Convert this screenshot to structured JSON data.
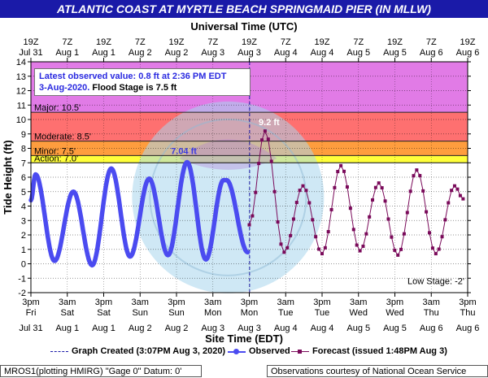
{
  "title": "ATLANTIC COAST AT MYRTLE BEACH SPRINGMAID PIER (IN MLLW)",
  "top_axis_title": "Universal Time (UTC)",
  "y_axis_title": "Tide Height (ft)",
  "x_axis_title": "Site Time (EDT)",
  "annotation": {
    "line1": "Latest observed value: 0.8 ft at 2:36 PM EDT",
    "line2_date": "3-Aug-2020.",
    "line2_flood": "Flood Stage is 7.5 ft"
  },
  "legend": {
    "created": "Graph Created (3:07PM Aug 3, 2020)",
    "observed": "Observed",
    "forecast": "Forecast (issued 1:48PM Aug 3)"
  },
  "footer": {
    "left": "MROS1(plotting HMIRG) \"Gage 0\" Datum: 0'",
    "right": "Observations courtesy of National Ocean Service"
  },
  "colors": {
    "title_bg": "#1a1aa8",
    "major": "#e17be6",
    "moderate": "#fe7070",
    "minor": "#fe9d3e",
    "action": "#ffff3a",
    "observed": "#4b4bf0",
    "forecast": "#7a0a5a",
    "gridline": "#000000"
  },
  "chart_data": {
    "type": "line",
    "ylim": [
      -2,
      14
    ],
    "y_ticks": [
      -2,
      -1,
      0,
      1,
      2,
      3,
      4,
      5,
      6,
      7,
      8,
      9,
      10,
      11,
      12,
      13,
      14
    ],
    "xlim_hours_edt": [
      0,
      144
    ],
    "x_units": "hours since 3pm Fri Jul 31 (EDT)",
    "bottom_ticks": [
      {
        "hour": 0,
        "time": "3pm",
        "day": "Fri",
        "date": "Jul 31"
      },
      {
        "hour": 12,
        "time": "3am",
        "day": "Sat",
        "date": "Aug 1"
      },
      {
        "hour": 24,
        "time": "3pm",
        "day": "Sat",
        "date": "Aug 1"
      },
      {
        "hour": 36,
        "time": "3am",
        "day": "Sun",
        "date": "Aug 2"
      },
      {
        "hour": 48,
        "time": "3pm",
        "day": "Sun",
        "date": "Aug 2"
      },
      {
        "hour": 60,
        "time": "3am",
        "day": "Mon",
        "date": "Aug 3"
      },
      {
        "hour": 72,
        "time": "3pm",
        "day": "Mon",
        "date": "Aug 3"
      },
      {
        "hour": 84,
        "time": "3am",
        "day": "Tue",
        "date": "Aug 4"
      },
      {
        "hour": 96,
        "time": "3pm",
        "day": "Tue",
        "date": "Aug 4"
      },
      {
        "hour": 108,
        "time": "3am",
        "day": "Wed",
        "date": "Aug 5"
      },
      {
        "hour": 120,
        "time": "3pm",
        "day": "Wed",
        "date": "Aug 5"
      },
      {
        "hour": 132,
        "time": "3am",
        "day": "Thu",
        "date": "Aug 6"
      },
      {
        "hour": 144,
        "time": "3pm",
        "day": "Thu",
        "date": "Aug 6"
      }
    ],
    "top_ticks": [
      {
        "hour": 0,
        "time": "19Z",
        "date": "Jul 31"
      },
      {
        "hour": 12,
        "time": "7Z",
        "date": "Aug 1"
      },
      {
        "hour": 24,
        "time": "19Z",
        "date": "Aug 1"
      },
      {
        "hour": 36,
        "time": "7Z",
        "date": "Aug 2"
      },
      {
        "hour": 48,
        "time": "19Z",
        "date": "Aug 2"
      },
      {
        "hour": 60,
        "time": "7Z",
        "date": "Aug 3"
      },
      {
        "hour": 72,
        "time": "19Z",
        "date": "Aug 3"
      },
      {
        "hour": 84,
        "time": "7Z",
        "date": "Aug 4"
      },
      {
        "hour": 96,
        "time": "19Z",
        "date": "Aug 4"
      },
      {
        "hour": 108,
        "time": "7Z",
        "date": "Aug 5"
      },
      {
        "hour": 120,
        "time": "19Z",
        "date": "Aug 5"
      },
      {
        "hour": 132,
        "time": "7Z",
        "date": "Aug 6"
      },
      {
        "hour": 144,
        "time": "19Z",
        "date": "Aug 6"
      }
    ],
    "flood_categories": [
      {
        "name": "Major",
        "label": "Major: 10.5'",
        "from": 10.5,
        "to": 14,
        "color": "#e17be6"
      },
      {
        "name": "Moderate",
        "label": "Moderate: 8.5'",
        "from": 8.5,
        "to": 10.5,
        "color": "#fe7070"
      },
      {
        "name": "Minor",
        "label": "Minor: 7.5'",
        "from": 7.5,
        "to": 8.5,
        "color": "#fe9d3e"
      },
      {
        "name": "Action",
        "label": "Action: 7.0'",
        "from": 7.0,
        "to": 7.5,
        "color": "#ffff3a"
      }
    ],
    "low_stage": {
      "label": "Low Stage: -2'",
      "value": -2
    },
    "graph_created_hour": 72.1,
    "observed_extrema": [
      {
        "hour": 0,
        "value": 4.4
      },
      {
        "hour": 1.5,
        "value": 6.2
      },
      {
        "hour": 7.8,
        "value": 0.2
      },
      {
        "hour": 14,
        "value": 5.0
      },
      {
        "hour": 20.2,
        "value": -0.1
      },
      {
        "hour": 26.5,
        "value": 6.6
      },
      {
        "hour": 32.7,
        "value": 0.5
      },
      {
        "hour": 39,
        "value": 5.9
      },
      {
        "hour": 45.2,
        "value": 0.6
      },
      {
        "hour": 51.5,
        "value": 7.04
      },
      {
        "hour": 57.7,
        "value": 0.3
      },
      {
        "hour": 63.5,
        "value": 5.8
      },
      {
        "hour": 64.5,
        "value": 5.8
      },
      {
        "hour": 71.5,
        "value": 0.8
      }
    ],
    "observed_peak_label": {
      "hour": 51.5,
      "value": 7.04,
      "text": "7.04 ft"
    },
    "forecast_extrema": [
      {
        "hour": 72,
        "value": 2.7
      },
      {
        "hour": 77.2,
        "value": 9.2
      },
      {
        "hour": 83.5,
        "value": 0.8
      },
      {
        "hour": 89.7,
        "value": 5.4
      },
      {
        "hour": 96,
        "value": 0.7
      },
      {
        "hour": 102.2,
        "value": 6.8
      },
      {
        "hour": 108.5,
        "value": 0.9
      },
      {
        "hour": 114.7,
        "value": 5.6
      },
      {
        "hour": 121,
        "value": 0.6
      },
      {
        "hour": 127.2,
        "value": 6.5
      },
      {
        "hour": 133.5,
        "value": 0.7
      },
      {
        "hour": 139.7,
        "value": 5.4
      },
      {
        "hour": 142.5,
        "value": 4.5
      }
    ],
    "forecast_peak_label": {
      "hour": 77.2,
      "value": 9.2,
      "text": "9.2 ft"
    }
  }
}
